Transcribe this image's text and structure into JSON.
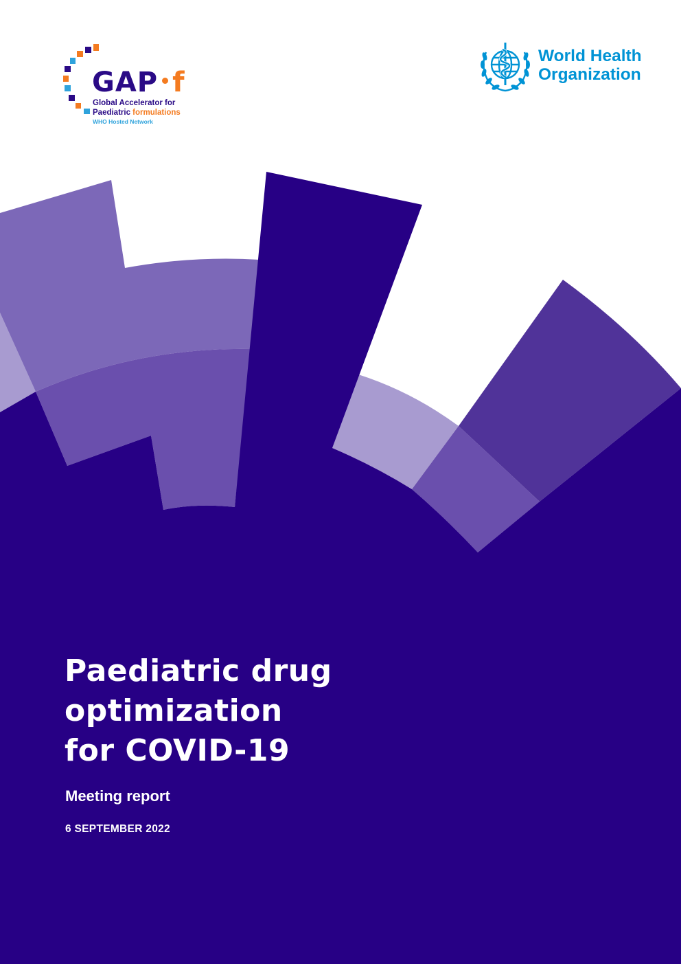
{
  "colors": {
    "background": "#ffffff",
    "primary": "#270085",
    "segment_light": "#a89bd0",
    "segment_mid": "#7c68b8",
    "segment_dark": "#6a4fad",
    "gapf_orange": "#f47b20",
    "gapf_blue": "#2fa3dc",
    "who_blue": "#0093d5"
  },
  "gapf_logo": {
    "word_left": "GAP",
    "word_right": "f",
    "line1": "Global Accelerator for",
    "line2_a": "Paediatric ",
    "line2_b": "formulations",
    "line3": "WHO Hosted Network"
  },
  "who_logo": {
    "icon": "who-emblem-icon",
    "name_line1": "World Health",
    "name_line2": "Organization"
  },
  "cover": {
    "title_line1": "Paediatric drug",
    "title_line2": "optimization",
    "title_line3": "for COVID-19",
    "subtitle": "Meeting report",
    "date": "6 SEPTEMBER 2022"
  }
}
